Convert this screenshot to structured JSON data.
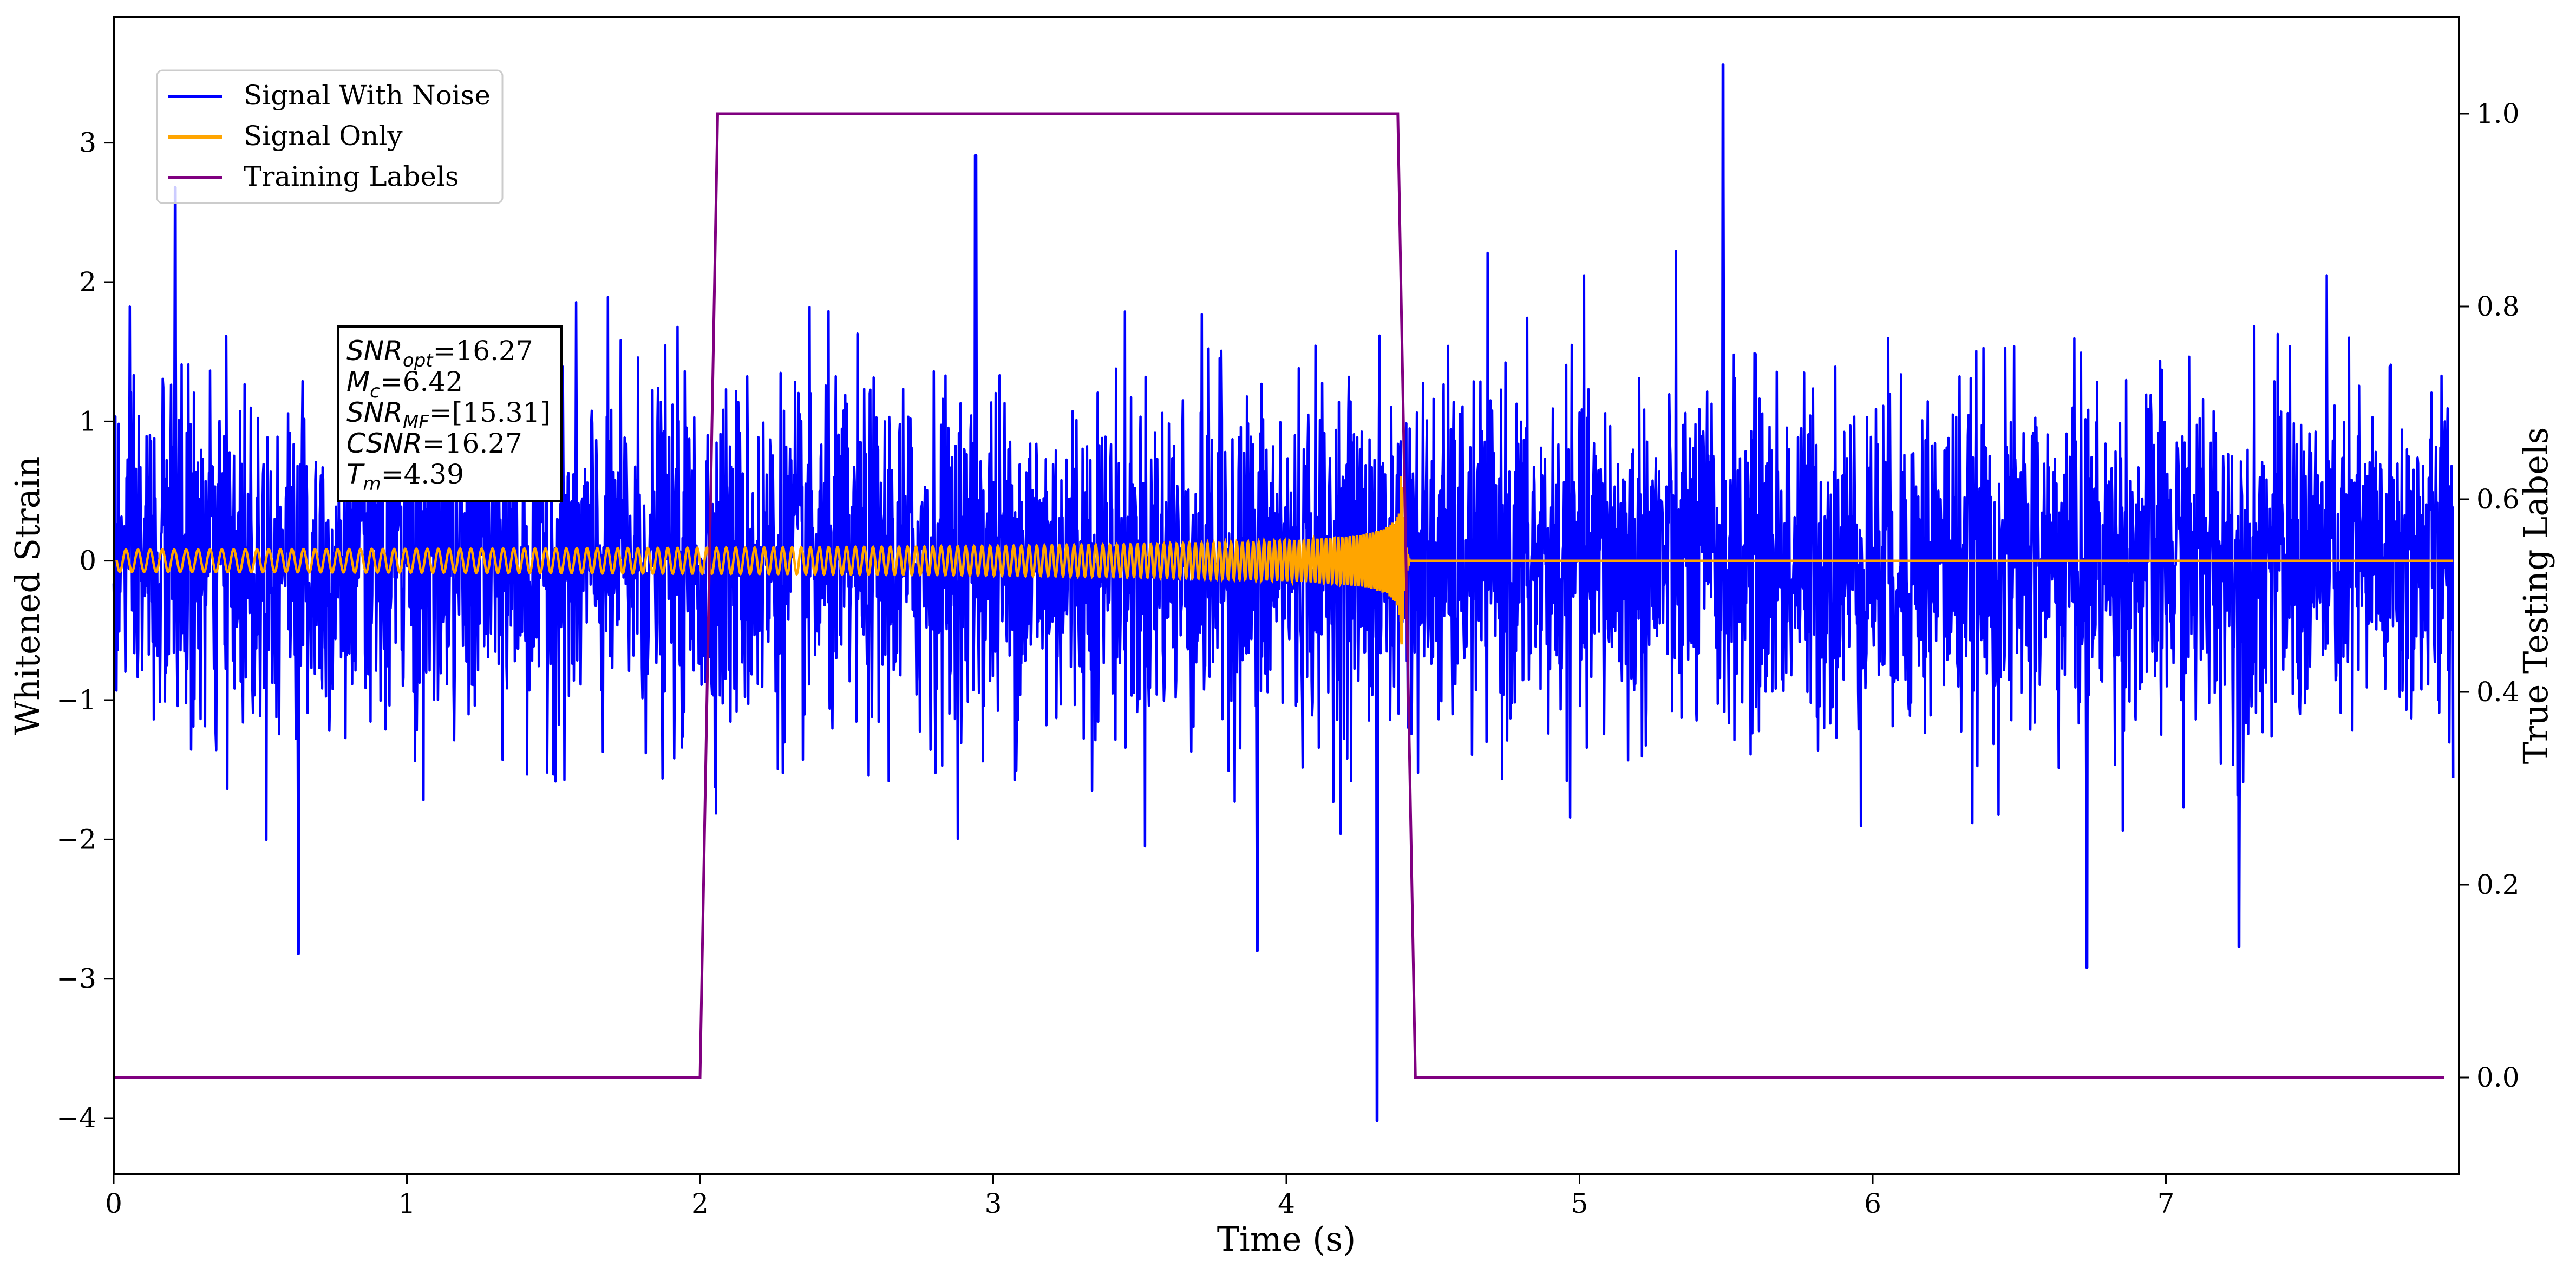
{
  "chart_data": {
    "type": "line",
    "xlabel": "Time (s)",
    "ylabel_left": "Whitened Strain",
    "ylabel_right": "True Testing Labels",
    "xlim": [
      0,
      8.0
    ],
    "ylim_left": [
      -4.4,
      3.9
    ],
    "ylim_right": [
      -0.1,
      1.1
    ],
    "x_ticks": [
      0,
      1,
      2,
      3,
      4,
      5,
      6,
      7
    ],
    "y_ticks_left": [
      -4,
      -3,
      -2,
      -1,
      0,
      1,
      2,
      3
    ],
    "y_ticks_right": [
      0.0,
      0.2,
      0.4,
      0.6,
      0.8,
      1.0
    ],
    "grid": false,
    "legend_position": "top-left",
    "series": [
      {
        "name": "Signal With Noise",
        "color": "#0000ff",
        "axis": "left",
        "description_values": {
          "noise_std": 0.62,
          "min": -4.02,
          "max": 3.56
        },
        "notable_peaks": [
          [
            0.21,
            2.68
          ],
          [
            0.63,
            -2.82
          ],
          [
            4.31,
            -4.02
          ],
          [
            3.9,
            -2.8
          ],
          [
            5.49,
            3.56
          ],
          [
            6.73,
            -2.92
          ],
          [
            7.25,
            -2.77
          ],
          [
            2.94,
            2.91
          ]
        ]
      },
      {
        "name": "Signal Only",
        "color": "#ffa500",
        "axis": "left",
        "description_values": {
          "start_amplitude": 0.08,
          "peak_amplitude": 1.05,
          "merger_time": 4.39,
          "zero_after": 4.42
        }
      },
      {
        "name": "Training Labels",
        "color": "#800080",
        "axis": "right",
        "x": [
          0.0,
          2.0,
          2.06,
          4.38,
          4.44,
          7.95
        ],
        "values": [
          0.0,
          0.0,
          1.0,
          1.0,
          0.0,
          0.0
        ]
      }
    ],
    "annotation": {
      "lines": [
        {
          "base": "SNR",
          "sub": "opt",
          "rest": "=16.27"
        },
        {
          "base": "M",
          "sub": "c",
          "rest": "=6.42"
        },
        {
          "base": "SNR",
          "sub": "MF",
          "rest": "=[15.31]"
        },
        {
          "base": "CSNR",
          "sub": "",
          "rest": "=16.27"
        },
        {
          "base": "T",
          "sub": "m",
          "rest": "=4.39"
        }
      ]
    }
  }
}
